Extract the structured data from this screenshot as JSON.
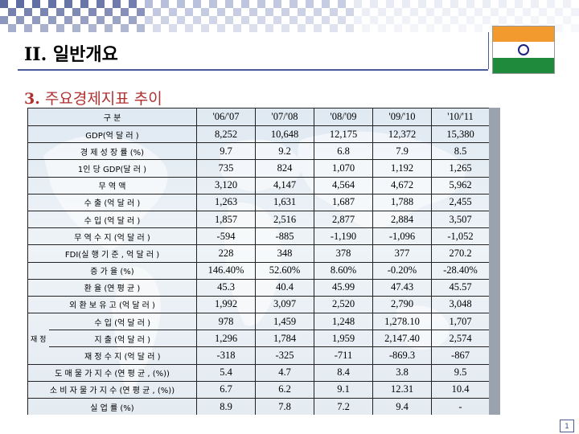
{
  "slide": {
    "section_number": "II.",
    "section_title": "일반개요",
    "subtitle_number": "3.",
    "subtitle_text": "주요경제지표 추이",
    "page_number": "1",
    "colors": {
      "accent": "#4a5a9a",
      "subtitle": "#b03030"
    },
    "flag_icon": "india-flag-icon"
  },
  "table": {
    "header": [
      "구 분",
      "'06/'07",
      "'07/'08",
      "'08/'09",
      "'09/'10",
      "'10/'11"
    ],
    "group_label": "재 정",
    "rows": [
      {
        "label": "GDP(억 달 러 )",
        "values": [
          "8,252",
          "10,648",
          "12,175",
          "12,372",
          "15,380"
        ]
      },
      {
        "label": "경 제 성 장 률 (%)",
        "values": [
          "9.7",
          "9.2",
          "6.8",
          "7.9",
          "8.5"
        ]
      },
      {
        "label": "1인 당 GDP(달 러 )",
        "values": [
          "735",
          "824",
          "1,070",
          "1,192",
          "1,265"
        ]
      },
      {
        "label": "무 역 액",
        "values": [
          "3,120",
          "4,147",
          "4,564",
          "4,672",
          "5,962"
        ]
      },
      {
        "label": "수 출 (억 달 러 )",
        "values": [
          "1,263",
          "1,631",
          "1,687",
          "1,788",
          "2,455"
        ]
      },
      {
        "label": "수 입 (억 달 러 )",
        "values": [
          "1,857",
          "2,516",
          "2,877",
          "2,884",
          "3,507"
        ]
      },
      {
        "label": "무 역 수 지 (억 달 러 )",
        "values": [
          "-594",
          "-885",
          "-1,190",
          "-1,096",
          "-1,052"
        ]
      },
      {
        "label": "FDI(실 행 기 준 , 억 달 러 )",
        "values": [
          "228",
          "348",
          "378",
          "377",
          "270.2"
        ]
      },
      {
        "label": "증 가 율 (%)",
        "values": [
          "146.40%",
          "52.60%",
          "8.60%",
          "-0.20%",
          "-28.40%"
        ]
      },
      {
        "label": "환 율 (연 평 균 )",
        "values": [
          "45.3",
          "40.4",
          "45.99",
          "47.43",
          "45.57"
        ]
      },
      {
        "label": "외 환 보 유 고 (억 달 러 )",
        "values": [
          "1,992",
          "3,097",
          "2,520",
          "2,790",
          "3,048"
        ]
      },
      {
        "label": "수 입 (억 달 러 )",
        "values": [
          "978",
          "1,459",
          "1,248",
          "1,278.10",
          "1,707"
        ]
      },
      {
        "label": "지 출 (억 달 러 )",
        "values": [
          "1,296",
          "1,784",
          "1,959",
          "2,147.40",
          "2,574"
        ]
      },
      {
        "label": "재 정 수 지 (억 달 러 )",
        "values": [
          "-318",
          "-325",
          "-711",
          "-869.3",
          "-867"
        ]
      },
      {
        "label": "도 매 물 가 지 수 (연 평 균 , (%))",
        "values": [
          "5.4",
          "4.7",
          "8.4",
          "3.8",
          "9.5"
        ]
      },
      {
        "label": "소 비 자 물 가 지 수 (연 평 균 , (%))",
        "values": [
          "6.7",
          "6.2",
          "9.1",
          "12.31",
          "10.4"
        ]
      },
      {
        "label": "실 업 률 (%)",
        "values": [
          "8.9",
          "7.8",
          "7.2",
          "9.4",
          "-"
        ]
      }
    ]
  }
}
